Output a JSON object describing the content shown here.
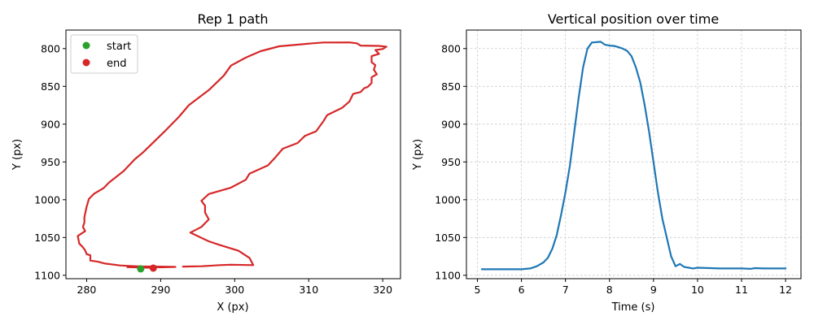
{
  "chart_data": [
    {
      "type": "line",
      "title": "Rep 1 path",
      "xlabel": "X (px)",
      "ylabel": "Y (px)",
      "xlim": [
        277.2,
        322.4
      ],
      "ylim": [
        1104.5,
        775.5
      ],
      "y_inverted": true,
      "grid": false,
      "legend_position": "upper-left",
      "xticks": [
        280,
        290,
        300,
        310,
        320
      ],
      "yticks": [
        800,
        850,
        900,
        950,
        1000,
        1050,
        1100
      ],
      "series": [
        {
          "color": "#d62728",
          "points": [
            [
              289.0,
              1090.5
            ],
            [
              288.5,
              1090.0
            ],
            [
              287.0,
              1089.6
            ],
            [
              285.5,
              1089.2
            ],
            [
              286.0,
              1088.8
            ],
            [
              288.0,
              1088.4
            ],
            [
              290.5,
              1088.6
            ],
            [
              292.0,
              1088.9
            ],
            [
              290.0,
              1089.5
            ],
            [
              285.5,
              1087.5
            ],
            [
              284.5,
              1087.0
            ],
            [
              282.5,
              1084.5
            ],
            [
              281.5,
              1082.0
            ],
            [
              280.5,
              1080.5
            ],
            [
              280.5,
              1078.5
            ],
            [
              280.5,
              1073.5
            ],
            [
              280.0,
              1072.0
            ],
            [
              279.8,
              1067.0
            ],
            [
              279.5,
              1063.0
            ],
            [
              279.0,
              1058.0
            ],
            [
              278.8,
              1048.0
            ],
            [
              279.8,
              1041.5
            ],
            [
              279.5,
              1036.0
            ],
            [
              279.7,
              1030.0
            ],
            [
              279.7,
              1023.0
            ],
            [
              280.0,
              1009.0
            ],
            [
              280.3,
              999.0
            ],
            [
              281.0,
              992.0
            ],
            [
              282.3,
              984.5
            ],
            [
              283.0,
              977.5
            ],
            [
              285.0,
              962.0
            ],
            [
              286.5,
              946.5
            ],
            [
              287.6,
              937.5
            ],
            [
              290.5,
              910.0
            ],
            [
              292.5,
              890.0
            ],
            [
              293.8,
              875.0
            ],
            [
              296.5,
              855.0
            ],
            [
              298.5,
              836.0
            ],
            [
              299.5,
              822.5
            ],
            [
              301.5,
              812.0
            ],
            [
              303.5,
              803.5
            ],
            [
              306.0,
              797.0
            ],
            [
              310.5,
              793.0
            ],
            [
              312.0,
              792.0
            ],
            [
              315.5,
              791.8
            ],
            [
              316.5,
              793.0
            ],
            [
              317.0,
              796.0
            ],
            [
              319.5,
              796.5
            ],
            [
              320.5,
              797.5
            ],
            [
              320.0,
              800.5
            ],
            [
              319.0,
              802.0
            ],
            [
              319.5,
              807.0
            ],
            [
              318.5,
              810.0
            ],
            [
              318.5,
              818.0
            ],
            [
              319.0,
              822.0
            ],
            [
              318.8,
              828.0
            ],
            [
              319.2,
              834.0
            ],
            [
              318.5,
              838.0
            ],
            [
              318.5,
              845.5
            ],
            [
              318.0,
              850.5
            ],
            [
              317.5,
              852.5
            ],
            [
              317.0,
              857.5
            ],
            [
              316.0,
              860.0
            ],
            [
              315.5,
              870.0
            ],
            [
              314.5,
              878.5
            ],
            [
              312.5,
              888.0
            ],
            [
              312.0,
              896.0
            ],
            [
              311.0,
              909.5
            ],
            [
              309.5,
              915.5
            ],
            [
              308.5,
              925.0
            ],
            [
              306.5,
              932.5
            ],
            [
              305.5,
              944.0
            ],
            [
              304.5,
              954.5
            ],
            [
              302.0,
              965.5
            ],
            [
              301.5,
              973.5
            ],
            [
              299.5,
              984.0
            ],
            [
              296.5,
              992.5
            ],
            [
              295.5,
              1001.5
            ],
            [
              296.0,
              1008.0
            ],
            [
              296.0,
              1017.0
            ],
            [
              296.5,
              1026.0
            ],
            [
              295.5,
              1036.0
            ],
            [
              294.0,
              1043.5
            ],
            [
              296.5,
              1055.0
            ],
            [
              298.0,
              1060.0
            ],
            [
              300.5,
              1067.5
            ],
            [
              302.0,
              1077.0
            ],
            [
              302.5,
              1086.5
            ],
            [
              299.5,
              1086.0
            ],
            [
              298.0,
              1086.5
            ],
            [
              295.5,
              1088.0
            ],
            [
              293.0,
              1088.5
            ]
          ]
        },
        {
          "name": "start",
          "kind": "marker",
          "color": "#2ca02c",
          "points": [
            [
              287.3,
              1091.5
            ]
          ]
        },
        {
          "name": "end",
          "kind": "marker",
          "color": "#d62728",
          "points": [
            [
              289.0,
              1090.5
            ]
          ]
        }
      ]
    },
    {
      "type": "line",
      "title": "Vertical position over time",
      "xlabel": "Time (s)",
      "ylabel": "Y (px)",
      "xlim": [
        4.75,
        12.35
      ],
      "ylim": [
        1104.5,
        775.5
      ],
      "y_inverted": true,
      "grid": true,
      "xticks": [
        5,
        6,
        7,
        8,
        9,
        10,
        11,
        12
      ],
      "yticks": [
        800,
        850,
        900,
        950,
        1000,
        1050,
        1100
      ],
      "series": [
        {
          "color": "#1f77b4",
          "points": [
            [
              5.1,
              1092.0
            ],
            [
              5.5,
              1092.0
            ],
            [
              6.0,
              1092.0
            ],
            [
              6.2,
              1091.0
            ],
            [
              6.35,
              1088.0
            ],
            [
              6.5,
              1083.0
            ],
            [
              6.6,
              1077.0
            ],
            [
              6.7,
              1065.0
            ],
            [
              6.8,
              1047.0
            ],
            [
              6.9,
              1020.0
            ],
            [
              7.0,
              990.0
            ],
            [
              7.1,
              955.0
            ],
            [
              7.2,
              910.0
            ],
            [
              7.3,
              865.0
            ],
            [
              7.4,
              825.0
            ],
            [
              7.5,
              800.0
            ],
            [
              7.6,
              792.0
            ],
            [
              7.7,
              791.5
            ],
            [
              7.8,
              791.0
            ],
            [
              7.9,
              795.0
            ],
            [
              8.0,
              796.0
            ],
            [
              8.1,
              796.5
            ],
            [
              8.2,
              798.0
            ],
            [
              8.3,
              800.0
            ],
            [
              8.4,
              803.0
            ],
            [
              8.5,
              810.0
            ],
            [
              8.6,
              825.0
            ],
            [
              8.7,
              845.0
            ],
            [
              8.8,
              875.0
            ],
            [
              8.9,
              910.0
            ],
            [
              9.0,
              950.0
            ],
            [
              9.1,
              990.0
            ],
            [
              9.2,
              1025.0
            ],
            [
              9.3,
              1050.0
            ],
            [
              9.4,
              1075.0
            ],
            [
              9.5,
              1088.0
            ],
            [
              9.6,
              1085.0
            ],
            [
              9.7,
              1089.0
            ],
            [
              9.8,
              1090.0
            ],
            [
              9.9,
              1091.0
            ],
            [
              10.0,
              1090.0
            ],
            [
              10.5,
              1091.0
            ],
            [
              11.0,
              1091.0
            ],
            [
              11.2,
              1091.5
            ],
            [
              11.3,
              1090.5
            ],
            [
              11.5,
              1091.0
            ],
            [
              12.0,
              1091.0
            ]
          ]
        }
      ]
    }
  ]
}
